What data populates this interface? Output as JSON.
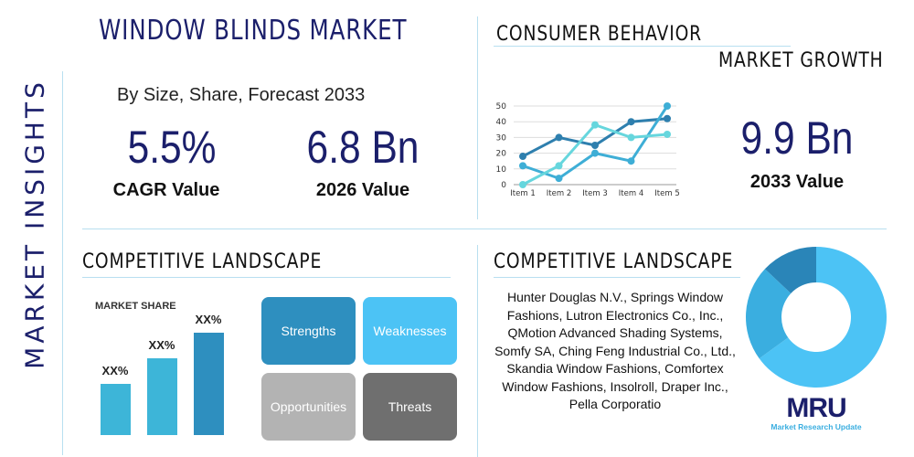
{
  "title": "WINDOW BLINDS MARKET",
  "side_title": "MARKET INSIGHTS",
  "subtitle": "By Size, Share, Forecast 2033",
  "stats": [
    {
      "value": "5.5%",
      "label": "CAGR Value"
    },
    {
      "value": "6.8 Bn",
      "label": "2026 Value"
    },
    {
      "value": "9.9 Bn",
      "label": "2033 Value"
    }
  ],
  "consumer_title": "CONSUMER BEHAVIOR",
  "growth_title": "MARKET GROWTH",
  "competitive_left_title": "COMPETITIVE LANDSCAPE",
  "competitive_right_title": "COMPETITIVE LANDSCAPE",
  "market_share_label": "MARKET SHARE",
  "bar_labels": [
    "XX%",
    "XX%",
    "XX%"
  ],
  "swot": {
    "strengths": "Strengths",
    "weaknesses": "Weaknesses",
    "opportunities": "Opportunities",
    "threats": "Threats"
  },
  "companies_text": "Hunter Douglas N.V., Springs Window Fashions, Lutron Electronics Co., Inc., QMotion Advanced Shading Systems, Somfy SA, Ching Feng Industrial Co., Ltd., Skandia Window Fashions, Comfortex Window Fashions, Insolroll, Draper Inc., Pella Corporatio",
  "logo": {
    "mark": "MRU",
    "text": "Market Research Update"
  },
  "colors": {
    "navy": "#1b1f6b",
    "dark": "#2e7fae",
    "mid": "#3eaed6",
    "light": "#66d6dd",
    "sky": "#4cc3f5",
    "grey": "#b3b3b3",
    "darkgrey": "#6f6f6f"
  },
  "chart_data": [
    {
      "type": "line",
      "categories": [
        "Item 1",
        "Item 2",
        "Item 3",
        "Item 4",
        "Item 5"
      ],
      "ylim": [
        0,
        50
      ],
      "yticks": [
        0,
        10,
        20,
        30,
        40,
        50
      ],
      "grid": true,
      "series": [
        {
          "values": [
            18,
            30,
            25,
            40,
            42
          ],
          "color": "#2e7fae"
        },
        {
          "values": [
            12,
            4,
            20,
            15,
            50
          ],
          "color": "#3eaed6"
        },
        {
          "values": [
            0,
            12,
            38,
            30,
            32
          ],
          "color": "#66d6dd"
        }
      ]
    },
    {
      "type": "pie",
      "donut": true,
      "values": [
        65,
        22,
        13
      ],
      "colors": [
        "#4cc3f5",
        "#3aaee0",
        "#2a85b8"
      ]
    },
    {
      "type": "bar",
      "values": [
        1,
        2,
        3
      ],
      "labels": [
        "XX%",
        "XX%",
        "XX%"
      ],
      "colors": [
        "#3db5d8",
        "#3db5d8",
        "#2e8fbf"
      ]
    }
  ]
}
